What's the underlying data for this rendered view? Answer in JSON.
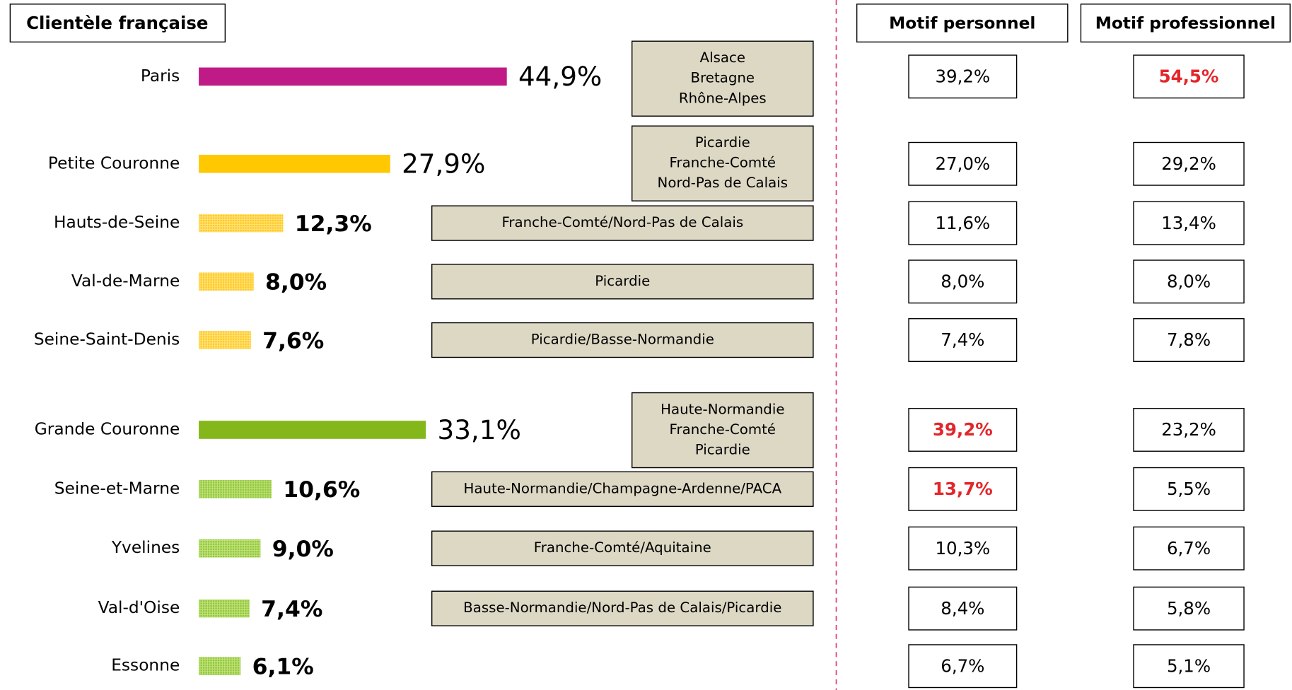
{
  "chart_data": {
    "type": "bar",
    "title": "Clientèle française",
    "categories": [
      "Paris",
      "Petite Couronne",
      "Hauts-de-Seine",
      "Val-de-Marne",
      "Seine-Saint-Denis",
      "Grande Couronne",
      "Seine-et-Marne",
      "Yvelines",
      "Val-d'Oise",
      "Essonne"
    ],
    "values": [
      44.9,
      27.9,
      12.3,
      8.0,
      7.6,
      33.1,
      10.6,
      9.0,
      7.4,
      6.1
    ],
    "value_labels": [
      "44,9%",
      "27,9%",
      "12,3%",
      "8,0%",
      "7,6%",
      "33,1%",
      "10,6%",
      "9,0%",
      "7,4%",
      "6,1%"
    ],
    "colors": [
      "#c01a87",
      "#ffc800",
      "#ffc800",
      "#ffc800",
      "#ffc800",
      "#84b71a",
      "#84b71a",
      "#84b71a",
      "#84b71a",
      "#84b71a"
    ],
    "hatched": [
      false,
      false,
      true,
      true,
      true,
      false,
      true,
      true,
      true,
      true
    ],
    "regions": [
      [
        "Alsace",
        "Bretagne",
        "Rhône-Alpes"
      ],
      [
        "Picardie",
        "Franche-Comté",
        "Nord-Pas de Calais"
      ],
      [
        "Franche-Comté/Nord-Pas de Calais"
      ],
      [
        "Picardie"
      ],
      [
        "Picardie/Basse-Normandie"
      ],
      [
        "Haute-Normandie",
        "Franche-Comté",
        "Picardie"
      ],
      [
        "Haute-Normandie/Champagne-Ardenne/PACA"
      ],
      [
        "Franche-Comté/Aquitaine"
      ],
      [
        "Basse-Normandie/Nord-Pas de Calais/Picardie"
      ],
      null
    ],
    "highlight_color": "#e3262b",
    "columns": [
      {
        "name": "Motif personnel",
        "values": [
          39.2,
          27.0,
          11.6,
          8.0,
          7.4,
          39.2,
          13.7,
          10.3,
          8.4,
          6.7
        ],
        "value_labels": [
          "39,2%",
          "27,0%",
          "11,6%",
          "8,0%",
          "7,4%",
          "39,2%",
          "13,7%",
          "10,3%",
          "8,4%",
          "6,7%"
        ],
        "highlighted": [
          false,
          false,
          false,
          false,
          false,
          true,
          true,
          false,
          false,
          false
        ]
      },
      {
        "name": "Motif professionnel",
        "values": [
          54.5,
          29.2,
          13.4,
          8.0,
          7.8,
          23.2,
          5.5,
          6.7,
          5.8,
          5.1
        ],
        "value_labels": [
          "54,5%",
          "29,2%",
          "13,4%",
          "8,0%",
          "7,8%",
          "23,2%",
          "5,5%",
          "6,7%",
          "5,8%",
          "5,1%"
        ],
        "highlighted": [
          true,
          false,
          false,
          false,
          false,
          false,
          false,
          false,
          false,
          false
        ]
      }
    ]
  }
}
